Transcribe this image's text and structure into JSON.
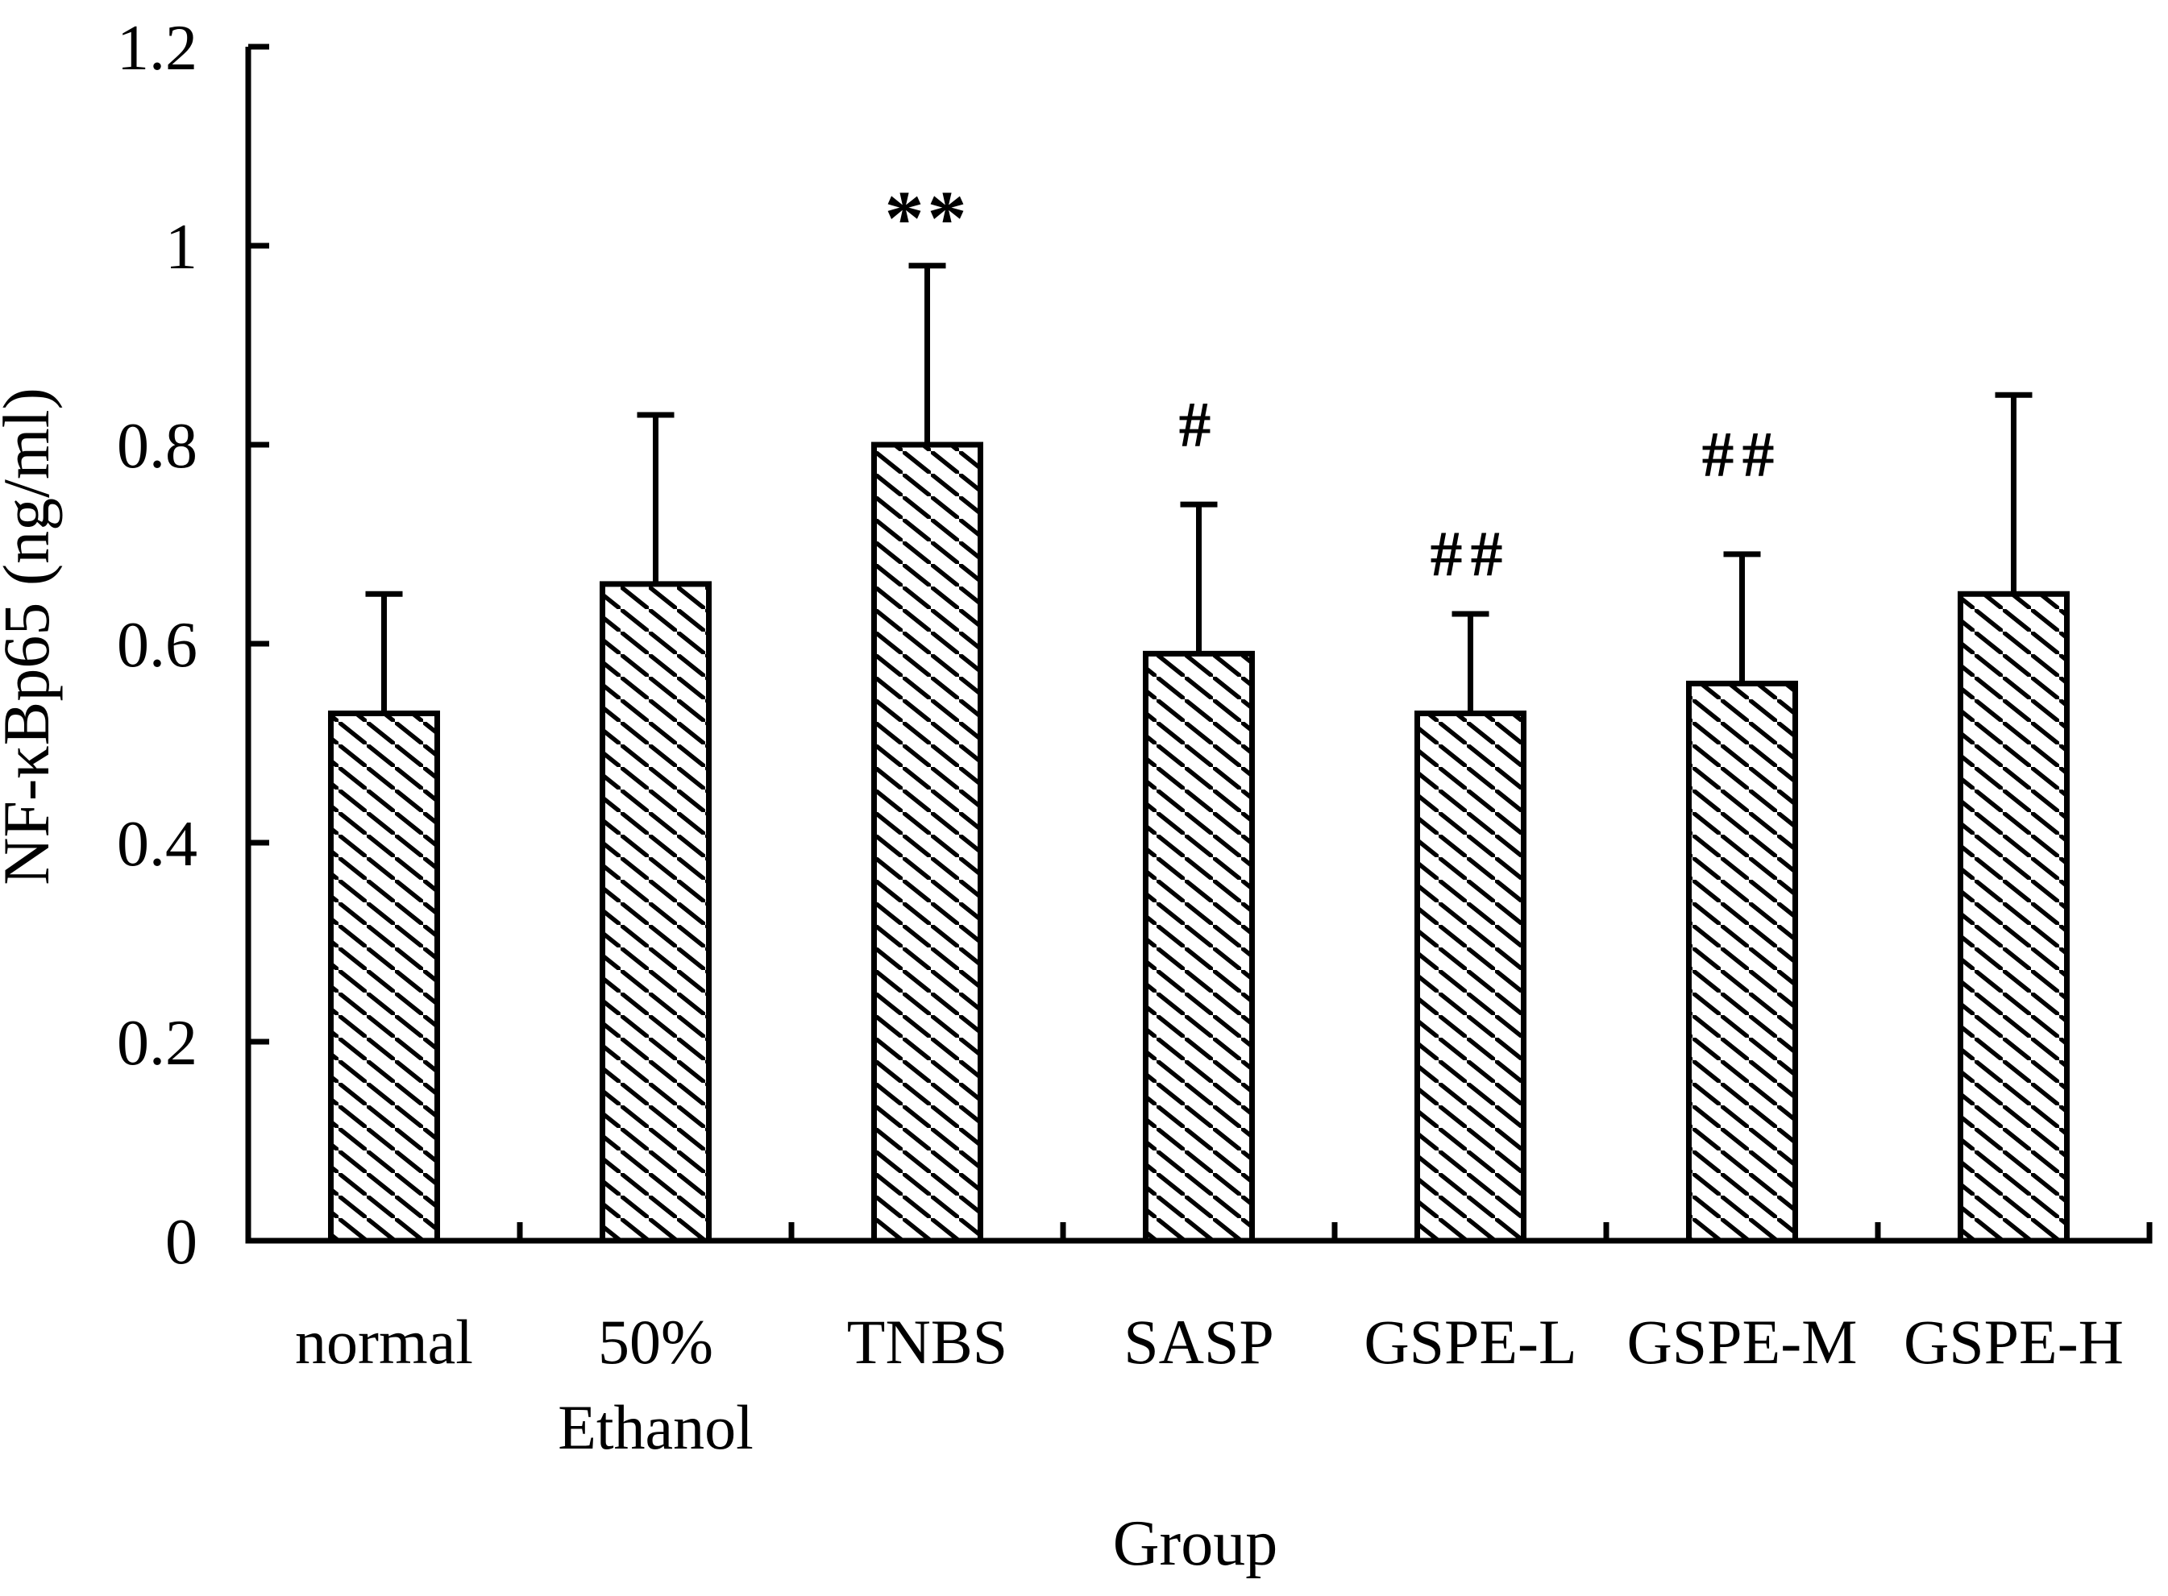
{
  "figure": {
    "background": "#ffffff",
    "foreground": "#000000"
  },
  "chart_data": {
    "type": "bar",
    "title": "",
    "ylabel": "NF-κBp65 (ng/ml)",
    "xlabel": "Group",
    "ylim": [
      0,
      1.2
    ],
    "yticks": [
      0,
      0.2,
      0.4,
      0.6,
      0.8,
      1,
      1.2
    ],
    "ytick_labels": [
      "0",
      "0.2",
      "0.4",
      "0.6",
      "0.8",
      "1",
      "1.2"
    ],
    "categories": [
      "normal",
      "50% Ethanol",
      "TNBS",
      "SASP",
      "GSPE-L",
      "GSPE-M",
      "GSPE-H"
    ],
    "category_label_lines": [
      [
        "normal"
      ],
      [
        "50%",
        "Ethanol"
      ],
      [
        "TNBS"
      ],
      [
        "SASP"
      ],
      [
        "GSPE-L"
      ],
      [
        "GSPE-M"
      ],
      [
        "GSPE-H"
      ]
    ],
    "values": [
      0.53,
      0.66,
      0.8,
      0.59,
      0.53,
      0.56,
      0.65
    ],
    "error_bars": {
      "kind": "sd-upper-only"
    },
    "error_sd": [
      0.12,
      0.17,
      0.18,
      0.15,
      0.1,
      0.13,
      0.2
    ],
    "error_top": [
      0.65,
      0.83,
      0.98,
      0.74,
      0.63,
      0.69,
      0.85
    ],
    "annotations": [
      {
        "category": "TNBS",
        "text": "**",
        "y": 1.04
      },
      {
        "category": "SASP",
        "text": "#",
        "y": 0.82
      },
      {
        "category": "GSPE-L",
        "text": "##",
        "y": 0.69
      },
      {
        "category": "GSPE-M",
        "text": "##",
        "y": 0.79
      }
    ],
    "bar_fill": "diagonal-hatch-backslash",
    "colors": {
      "stroke": "#000000",
      "background": "#ffffff"
    },
    "legend": null,
    "grid": false
  }
}
